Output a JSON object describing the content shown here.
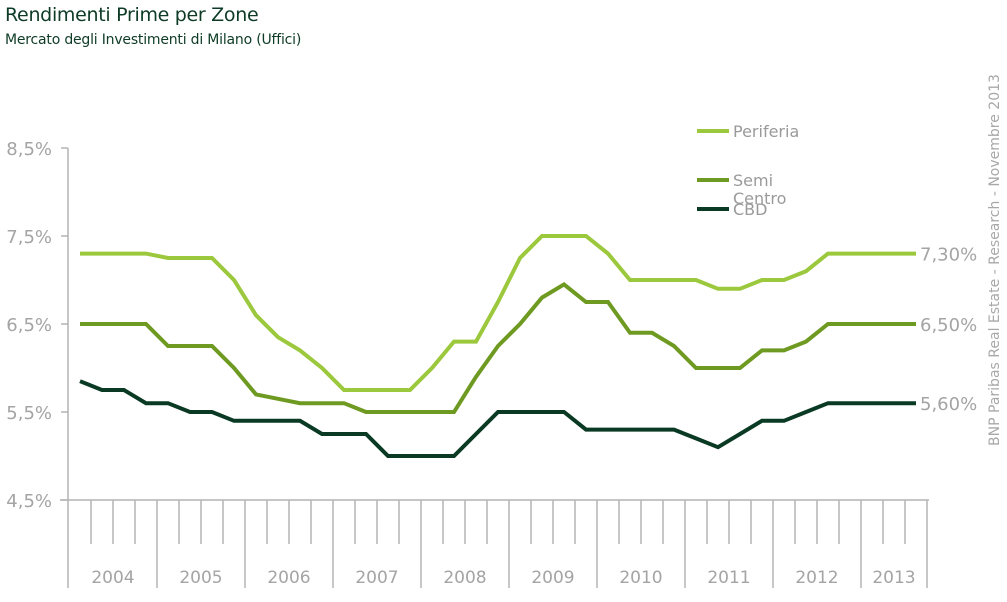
{
  "title": "Rendimenti Prime per Zone",
  "subtitle": "Mercato degli Investimenti di Milano (Uffici)",
  "source": "BNP Paribas Real Estate - Research - Novembre 2013",
  "chart_data": {
    "type": "line",
    "title": "Rendimenti Prime per Zone",
    "subtitle": "Mercato degli Investimenti di Milano (Uffici)",
    "xlabel": "",
    "ylabel": "",
    "ylim": [
      4.5,
      8.5
    ],
    "yticks": [
      4.5,
      5.5,
      6.5,
      7.5,
      8.5
    ],
    "ytick_labels": [
      "4,5%",
      "5,5%",
      "6,5%",
      "7,5%",
      "8,5%"
    ],
    "grid": false,
    "legend_position": "top-right",
    "x_granularity": "quarter",
    "years": [
      {
        "label": "2004",
        "quarters": 4
      },
      {
        "label": "2005",
        "quarters": 4
      },
      {
        "label": "2006",
        "quarters": 4
      },
      {
        "label": "2007",
        "quarters": 4
      },
      {
        "label": "2008",
        "quarters": 4
      },
      {
        "label": "2009",
        "quarters": 4
      },
      {
        "label": "2010",
        "quarters": 4
      },
      {
        "label": "2011",
        "quarters": 4
      },
      {
        "label": "2012",
        "quarters": 4
      },
      {
        "label": "2013",
        "quarters": 3
      }
    ],
    "series": [
      {
        "name": "Periferia",
        "color": "#9bc83c",
        "end_label": "7,30%",
        "values": [
          7.3,
          7.3,
          7.3,
          7.3,
          7.25,
          7.25,
          7.25,
          7.0,
          6.6,
          6.35,
          6.2,
          6.0,
          5.75,
          5.75,
          5.75,
          5.75,
          6.0,
          6.3,
          6.3,
          6.75,
          7.25,
          7.5,
          7.5,
          7.5,
          7.3,
          7.0,
          7.0,
          7.0,
          7.0,
          6.9,
          6.9,
          7.0,
          7.0,
          7.1,
          7.3,
          7.3,
          7.3,
          7.3,
          7.3
        ]
      },
      {
        "name": "Semi Centro",
        "color": "#6e9a22",
        "end_label": "6,50%",
        "values": [
          6.5,
          6.5,
          6.5,
          6.5,
          6.25,
          6.25,
          6.25,
          6.0,
          5.7,
          5.65,
          5.6,
          5.6,
          5.6,
          5.5,
          5.5,
          5.5,
          5.5,
          5.5,
          5.9,
          6.25,
          6.5,
          6.8,
          6.95,
          6.75,
          6.75,
          6.4,
          6.4,
          6.25,
          6.0,
          6.0,
          6.0,
          6.2,
          6.2,
          6.3,
          6.5,
          6.5,
          6.5,
          6.5,
          6.5
        ]
      },
      {
        "name": "CBD",
        "color": "#0a3a24",
        "end_label": "5,60%",
        "values": [
          5.85,
          5.75,
          5.75,
          5.6,
          5.6,
          5.5,
          5.5,
          5.4,
          5.4,
          5.4,
          5.4,
          5.25,
          5.25,
          5.25,
          5.0,
          5.0,
          5.0,
          5.0,
          5.25,
          5.5,
          5.5,
          5.5,
          5.5,
          5.3,
          5.3,
          5.3,
          5.3,
          5.3,
          5.2,
          5.1,
          5.25,
          5.4,
          5.4,
          5.5,
          5.6,
          5.6,
          5.6,
          5.6,
          5.6
        ]
      }
    ]
  },
  "legend": [
    {
      "label_lines": [
        "Periferia"
      ],
      "color": "#9bc83c"
    },
    {
      "label_lines": [
        "Semi",
        "Centro"
      ],
      "color": "#6e9a22"
    },
    {
      "label_lines": [
        "CBD"
      ],
      "color": "#0a3a24"
    }
  ]
}
